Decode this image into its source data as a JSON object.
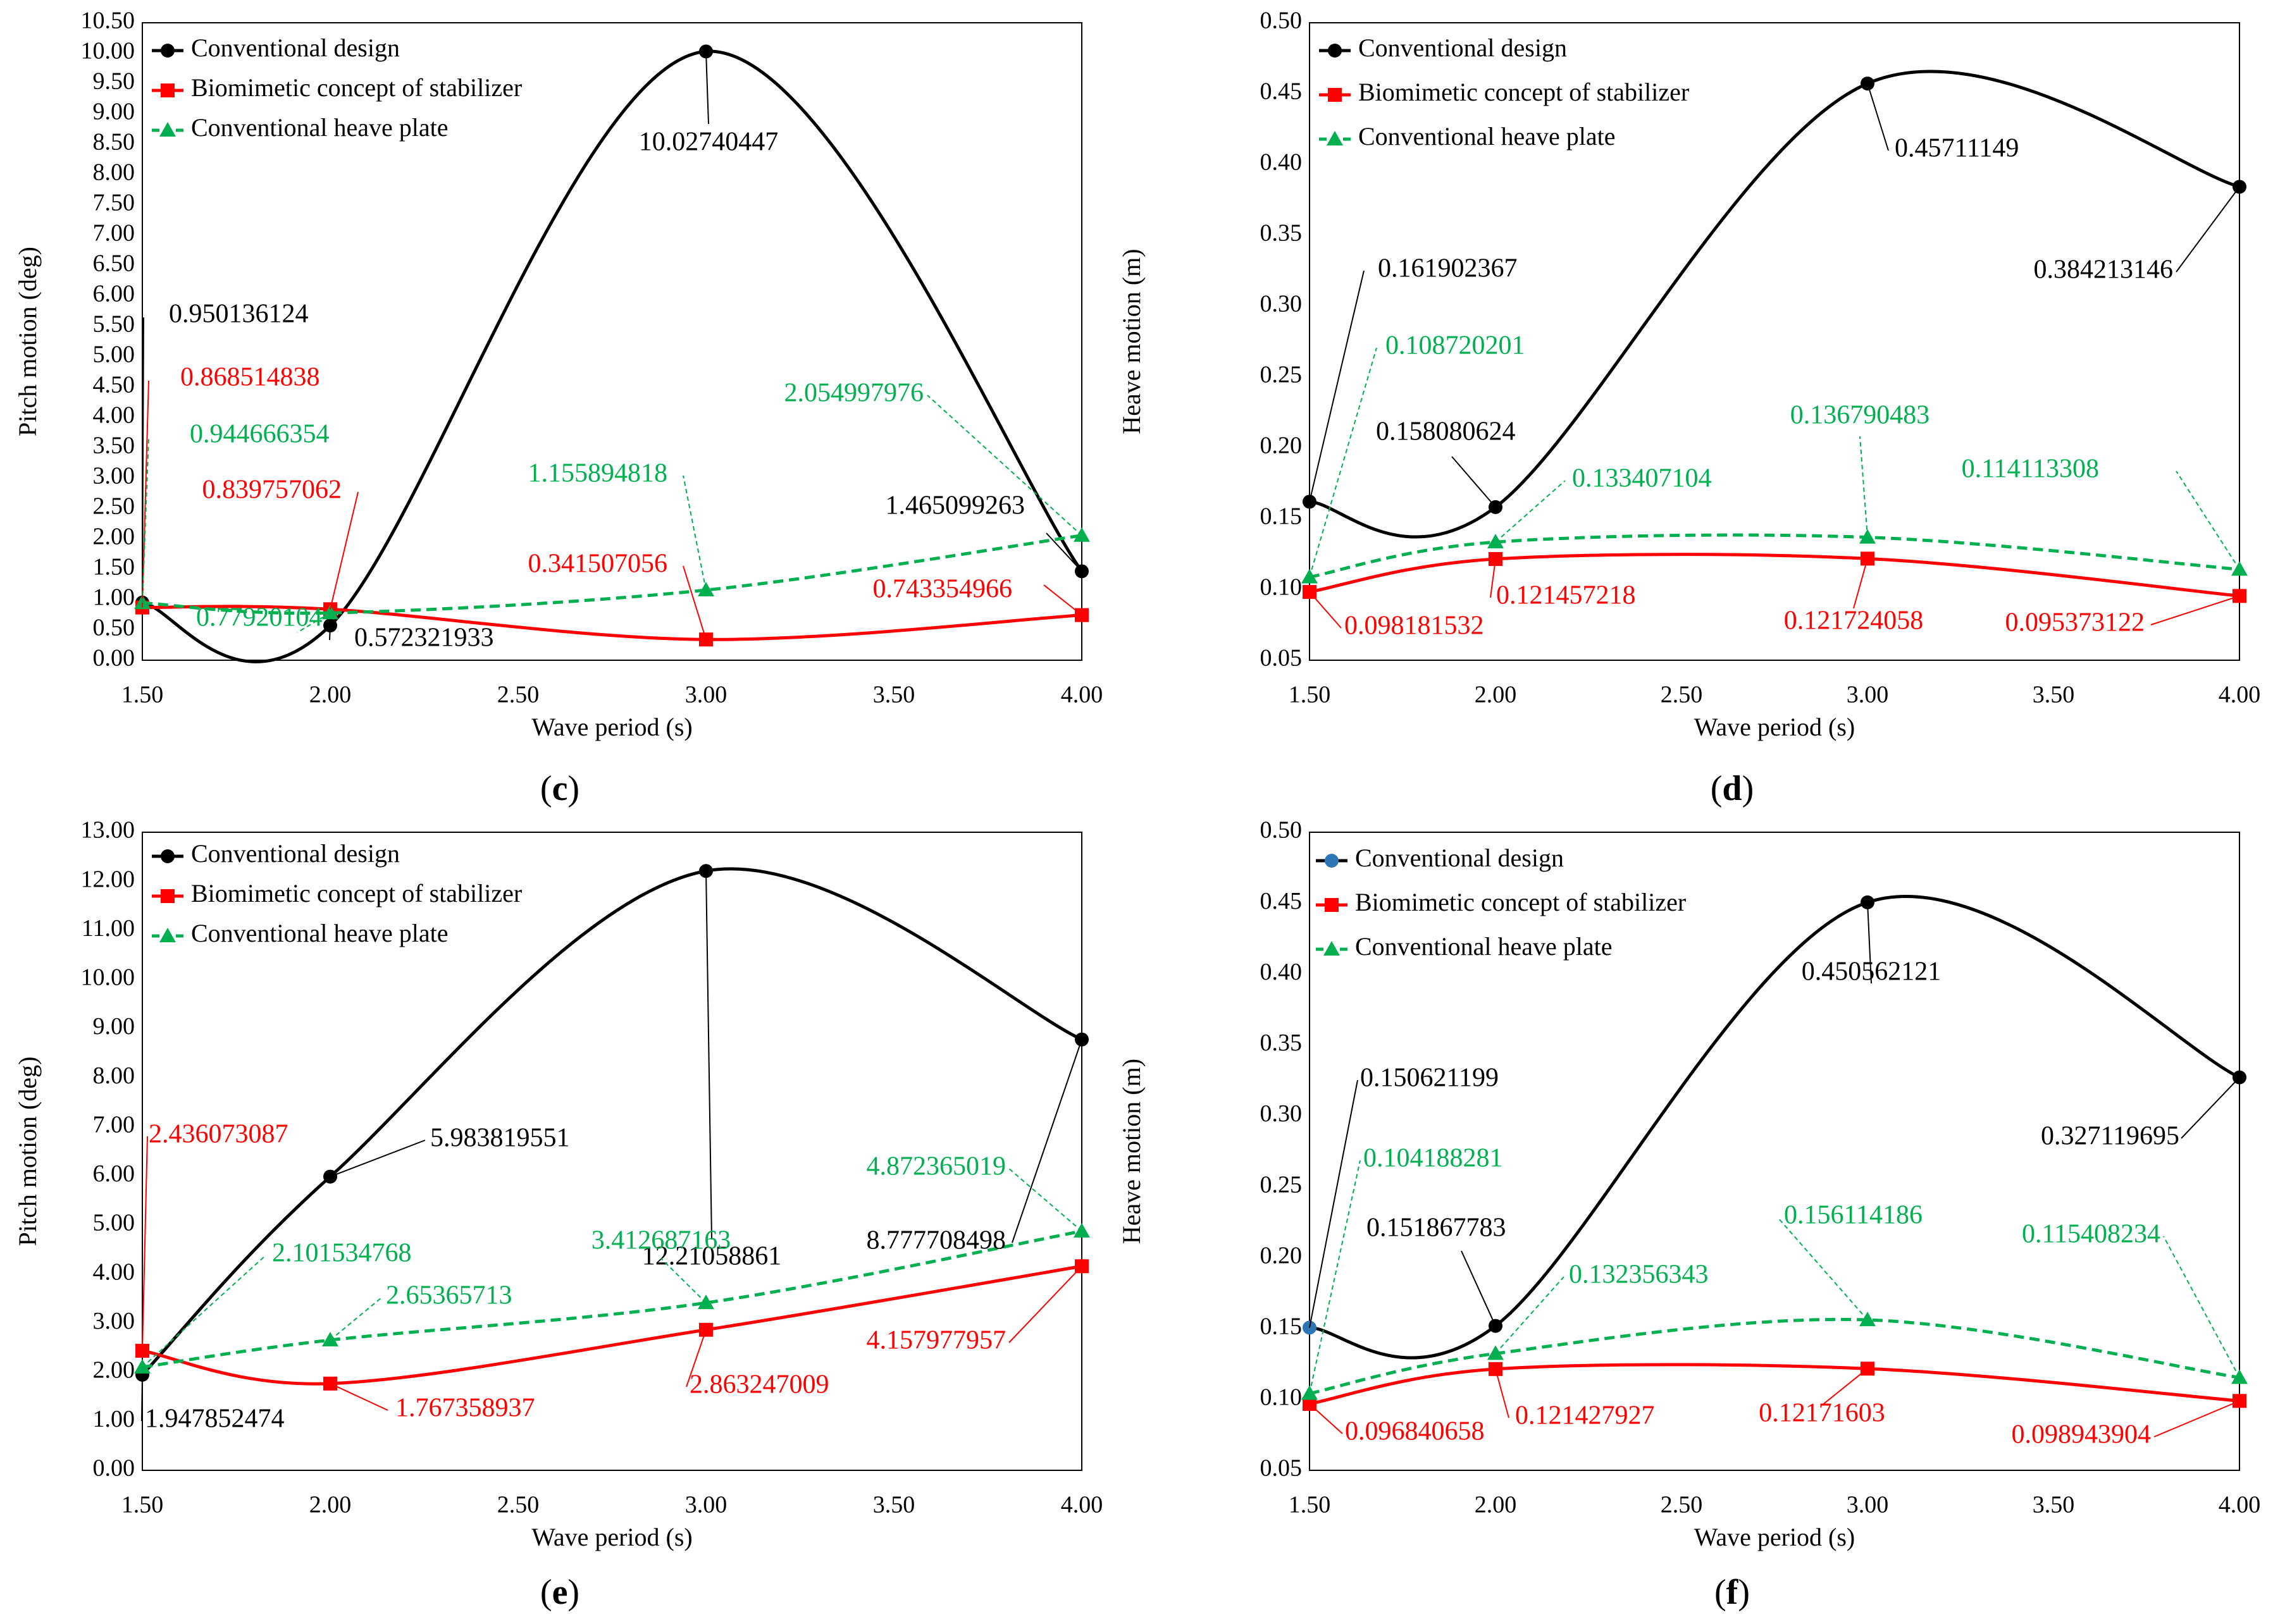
{
  "colors": {
    "conventional": "#000000",
    "biomimetic": "#ff0000",
    "heave_plate": "#00b050",
    "conventional_blue_marker": "#2e75b6",
    "axis": "#000000",
    "text": "#000000"
  },
  "chart_data": [
    {
      "type": "line",
      "panel": "c",
      "caption_letter": "c",
      "xlabel": "Wave period (s)",
      "ylabel": "Pitch motion (deg)",
      "xlim": [
        1.5,
        4.0
      ],
      "ylim": [
        0.0,
        10.5
      ],
      "x_ticks": [
        "1.50",
        "2.00",
        "2.50",
        "3.00",
        "3.50",
        "4.00"
      ],
      "y_ticks": [
        "0.00",
        "0.50",
        "1.00",
        "1.50",
        "2.00",
        "2.50",
        "3.00",
        "3.50",
        "4.00",
        "4.50",
        "5.00",
        "5.50",
        "6.00",
        "6.50",
        "7.00",
        "7.50",
        "8.00",
        "8.50",
        "9.00",
        "9.50",
        "10.00",
        "10.50"
      ],
      "legend": [
        "Conventional design",
        "Biomimetic concept of stabilizer",
        "Conventional heave plate"
      ],
      "legend_position": "top-left",
      "x": [
        1.5,
        2.0,
        3.0,
        4.0
      ],
      "series": [
        {
          "name": "Conventional design",
          "values": [
            0.950136124,
            0.572321933,
            10.02740447,
            1.465099263
          ],
          "labels": [
            "0.950136124",
            "0.572321933",
            "10.02740447",
            "1.465099263"
          ]
        },
        {
          "name": "Biomimetic concept of stabilizer",
          "values": [
            0.868514838,
            0.839757062,
            0.341507056,
            0.743354966
          ],
          "labels": [
            "0.868514838",
            "0.839757062",
            "0.341507056",
            "0.743354966"
          ]
        },
        {
          "name": "Conventional heave plate",
          "values": [
            0.944666354,
            0.77920104,
            1.155894818,
            2.054997976
          ],
          "labels": [
            "0.944666354",
            "0.77920104",
            "1.155894818",
            "2.054997976"
          ]
        }
      ]
    },
    {
      "type": "line",
      "panel": "d",
      "caption_letter": "d",
      "xlabel": "Wave period (s)",
      "ylabel": "Heave motion (m)",
      "xlim": [
        1.5,
        4.0
      ],
      "ylim": [
        0.05,
        0.5
      ],
      "x_ticks": [
        "1.50",
        "2.00",
        "2.50",
        "3.00",
        "3.50",
        "4.00"
      ],
      "y_ticks": [
        "0.05",
        "0.10",
        "0.15",
        "0.20",
        "0.25",
        "0.30",
        "0.35",
        "0.40",
        "0.45",
        "0.50"
      ],
      "legend": [
        "Conventional design",
        "Biomimetic concept of stabilizer",
        "Conventional heave plate"
      ],
      "legend_position": "top-left",
      "x": [
        1.5,
        2.0,
        3.0,
        4.0
      ],
      "series": [
        {
          "name": "Conventional design",
          "values": [
            0.161902367,
            0.158080624,
            0.45711149,
            0.384213146
          ],
          "labels": [
            "0.161902367",
            "0.158080624",
            "0.45711149",
            "0.384213146"
          ]
        },
        {
          "name": "Biomimetic concept of stabilizer",
          "values": [
            0.098181532,
            0.121457218,
            0.121724058,
            0.095373122
          ],
          "labels": [
            "0.098181532",
            "0.121457218",
            "0.121724058",
            "0.095373122"
          ]
        },
        {
          "name": "Conventional heave plate",
          "values": [
            0.108720201,
            0.133407104,
            0.136790483,
            0.114113308
          ],
          "labels": [
            "0.108720201",
            "0.133407104",
            "0.136790483",
            "0.114113308"
          ]
        }
      ]
    },
    {
      "type": "line",
      "panel": "e",
      "caption_letter": "e",
      "xlabel": "Wave period (s)",
      "ylabel": "Pitch motion (deg)",
      "xlim": [
        1.5,
        4.0
      ],
      "ylim": [
        0.0,
        13.0
      ],
      "x_ticks": [
        "1.50",
        "2.00",
        "2.50",
        "3.00",
        "3.50",
        "4.00"
      ],
      "y_ticks": [
        "0.00",
        "1.00",
        "2.00",
        "3.00",
        "4.00",
        "5.00",
        "6.00",
        "7.00",
        "8.00",
        "9.00",
        "10.00",
        "11.00",
        "12.00",
        "13.00"
      ],
      "legend": [
        "Conventional design",
        "Biomimetic concept of stabilizer",
        "Conventional heave plate"
      ],
      "legend_position": "top-left",
      "x": [
        1.5,
        2.0,
        3.0,
        4.0
      ],
      "series": [
        {
          "name": "Conventional design",
          "values": [
            1.947852474,
            5.983819551,
            12.21058861,
            8.777708498
          ],
          "labels": [
            "1.947852474",
            "5.983819551",
            "12.21058861",
            "8.777708498"
          ]
        },
        {
          "name": "Biomimetic concept of stabilizer",
          "values": [
            2.436073087,
            1.767358937,
            2.863247009,
            4.157977957
          ],
          "labels": [
            "2.436073087",
            "1.767358937",
            "2.863247009",
            "4.157977957"
          ]
        },
        {
          "name": "Conventional heave plate",
          "values": [
            2.101534768,
            2.65365713,
            3.412687163,
            4.872365019
          ],
          "labels": [
            "2.101534768",
            "2.65365713",
            "3.412687163",
            "4.872365019"
          ]
        }
      ]
    },
    {
      "type": "line",
      "panel": "f",
      "caption_letter": "f",
      "xlabel": "Wave period (s)",
      "ylabel": "Heave motion (m)",
      "xlim": [
        1.5,
        4.0
      ],
      "ylim": [
        0.05,
        0.5
      ],
      "x_ticks": [
        "1.50",
        "2.00",
        "2.50",
        "3.00",
        "3.50",
        "4.00"
      ],
      "y_ticks": [
        "0.05",
        "0.10",
        "0.15",
        "0.20",
        "0.25",
        "0.30",
        "0.35",
        "0.40",
        "0.45",
        "0.50"
      ],
      "legend": [
        "Conventional design",
        "Biomimetic concept of stabilizer",
        "Conventional heave plate"
      ],
      "legend_position": "top-left",
      "x": [
        1.5,
        2.0,
        3.0,
        4.0
      ],
      "series": [
        {
          "name": "Conventional design",
          "values": [
            0.150621199,
            0.151867783,
            0.450562121,
            0.327119695
          ],
          "labels": [
            "0.150621199",
            "0.151867783",
            "0.450562121",
            "0.327119695"
          ]
        },
        {
          "name": "Biomimetic concept of stabilizer",
          "values": [
            0.096840658,
            0.121427927,
            0.12171603,
            0.098943904
          ],
          "labels": [
            "0.096840658",
            "0.121427927",
            "0.12171603",
            "0.098943904"
          ]
        },
        {
          "name": "Conventional heave plate",
          "values": [
            0.104188281,
            0.132356343,
            0.156114186,
            0.115408234
          ],
          "labels": [
            "0.104188281",
            "0.132356343",
            "0.156114186",
            "0.115408234"
          ]
        }
      ]
    }
  ]
}
